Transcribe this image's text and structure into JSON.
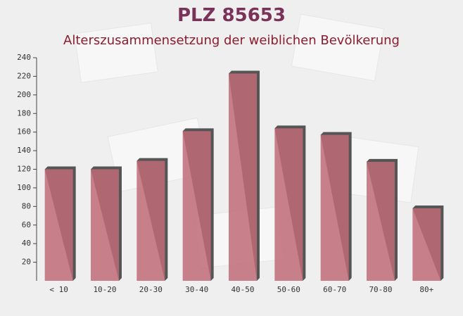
{
  "chart_data": {
    "type": "bar",
    "title": "PLZ 85653",
    "subtitle": "Alterszusammensetzung der weiblichen Bevölkerung",
    "categories": [
      "< 10",
      "10-20",
      "20-30",
      "30-40",
      "40-50",
      "50-60",
      "60-70",
      "70-80",
      "80+"
    ],
    "values": [
      120,
      120,
      129,
      161,
      223,
      164,
      157,
      128,
      78
    ],
    "color": "#c06b77",
    "ylim": [
      0,
      240
    ],
    "yticks": [
      20,
      40,
      60,
      80,
      100,
      120,
      140,
      160,
      180,
      200,
      220,
      240
    ]
  }
}
